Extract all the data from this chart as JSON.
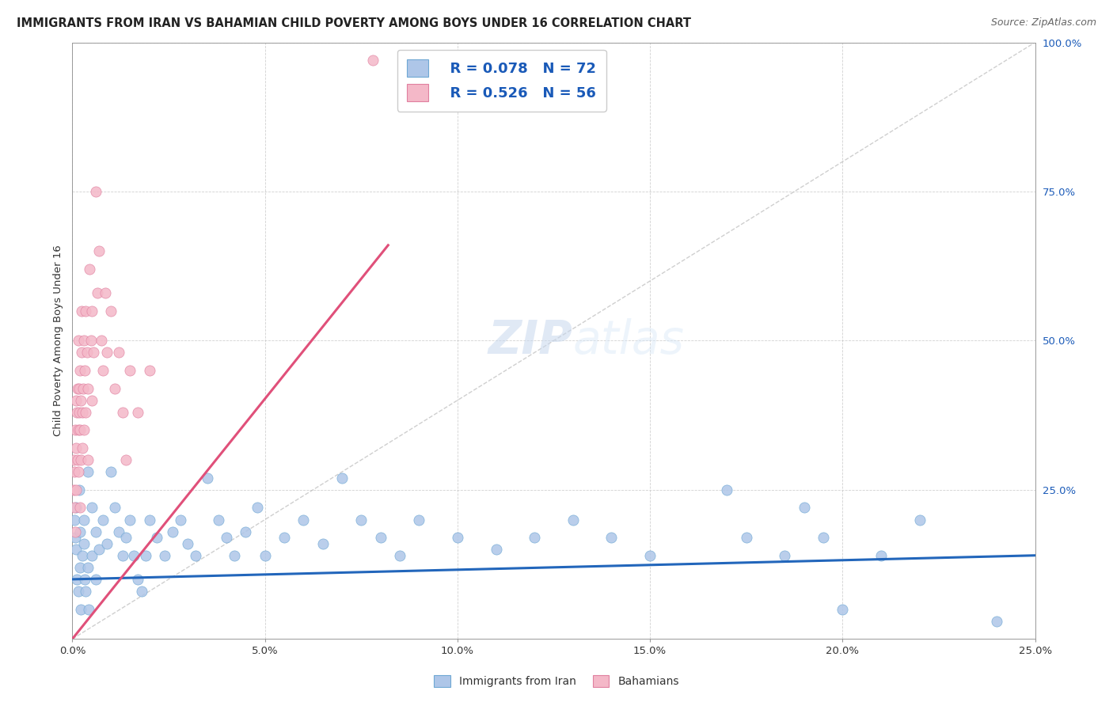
{
  "title": "IMMIGRANTS FROM IRAN VS BAHAMIAN CHILD POVERTY AMONG BOYS UNDER 16 CORRELATION CHART",
  "source": "Source: ZipAtlas.com",
  "ylabel": "Child Poverty Among Boys Under 16",
  "legend_entries": [
    {
      "label": "Immigrants from Iran",
      "R": "0.078",
      "N": "72",
      "color": "#aec6e8",
      "edge_color": "#6fa8d4",
      "line_color": "#2266bb"
    },
    {
      "label": "Bahamians",
      "R": "0.526",
      "N": "56",
      "color": "#f4b8c8",
      "edge_color": "#e080a0",
      "line_color": "#e0507a"
    }
  ],
  "watermark_zip": "ZIP",
  "watermark_atlas": "atlas",
  "blue_points": [
    [
      0.0005,
      0.2
    ],
    [
      0.0008,
      0.17
    ],
    [
      0.001,
      0.15
    ],
    [
      0.001,
      0.22
    ],
    [
      0.0012,
      0.1
    ],
    [
      0.0015,
      0.08
    ],
    [
      0.0018,
      0.25
    ],
    [
      0.002,
      0.12
    ],
    [
      0.002,
      0.18
    ],
    [
      0.0022,
      0.05
    ],
    [
      0.0025,
      0.14
    ],
    [
      0.003,
      0.16
    ],
    [
      0.003,
      0.2
    ],
    [
      0.0032,
      0.1
    ],
    [
      0.0035,
      0.08
    ],
    [
      0.004,
      0.12
    ],
    [
      0.004,
      0.28
    ],
    [
      0.0042,
      0.05
    ],
    [
      0.005,
      0.14
    ],
    [
      0.005,
      0.22
    ],
    [
      0.006,
      0.1
    ],
    [
      0.006,
      0.18
    ],
    [
      0.007,
      0.15
    ],
    [
      0.008,
      0.2
    ],
    [
      0.009,
      0.16
    ],
    [
      0.01,
      0.28
    ],
    [
      0.011,
      0.22
    ],
    [
      0.012,
      0.18
    ],
    [
      0.013,
      0.14
    ],
    [
      0.014,
      0.17
    ],
    [
      0.015,
      0.2
    ],
    [
      0.016,
      0.14
    ],
    [
      0.017,
      0.1
    ],
    [
      0.018,
      0.08
    ],
    [
      0.019,
      0.14
    ],
    [
      0.02,
      0.2
    ],
    [
      0.022,
      0.17
    ],
    [
      0.024,
      0.14
    ],
    [
      0.026,
      0.18
    ],
    [
      0.028,
      0.2
    ],
    [
      0.03,
      0.16
    ],
    [
      0.032,
      0.14
    ],
    [
      0.035,
      0.27
    ],
    [
      0.038,
      0.2
    ],
    [
      0.04,
      0.17
    ],
    [
      0.042,
      0.14
    ],
    [
      0.045,
      0.18
    ],
    [
      0.048,
      0.22
    ],
    [
      0.05,
      0.14
    ],
    [
      0.055,
      0.17
    ],
    [
      0.06,
      0.2
    ],
    [
      0.065,
      0.16
    ],
    [
      0.07,
      0.27
    ],
    [
      0.075,
      0.2
    ],
    [
      0.08,
      0.17
    ],
    [
      0.085,
      0.14
    ],
    [
      0.09,
      0.2
    ],
    [
      0.1,
      0.17
    ],
    [
      0.11,
      0.15
    ],
    [
      0.12,
      0.17
    ],
    [
      0.13,
      0.2
    ],
    [
      0.14,
      0.17
    ],
    [
      0.15,
      0.14
    ],
    [
      0.17,
      0.25
    ],
    [
      0.175,
      0.17
    ],
    [
      0.185,
      0.14
    ],
    [
      0.19,
      0.22
    ],
    [
      0.195,
      0.17
    ],
    [
      0.2,
      0.05
    ],
    [
      0.21,
      0.14
    ],
    [
      0.22,
      0.2
    ],
    [
      0.24,
      0.03
    ]
  ],
  "pink_points": [
    [
      0.0003,
      0.25
    ],
    [
      0.0004,
      0.3
    ],
    [
      0.0005,
      0.22
    ],
    [
      0.0006,
      0.28
    ],
    [
      0.0007,
      0.35
    ],
    [
      0.0008,
      0.18
    ],
    [
      0.0009,
      0.4
    ],
    [
      0.001,
      0.32
    ],
    [
      0.001,
      0.25
    ],
    [
      0.0012,
      0.38
    ],
    [
      0.0013,
      0.3
    ],
    [
      0.0014,
      0.42
    ],
    [
      0.0015,
      0.35
    ],
    [
      0.0015,
      0.28
    ],
    [
      0.0016,
      0.5
    ],
    [
      0.0017,
      0.38
    ],
    [
      0.0018,
      0.42
    ],
    [
      0.0019,
      0.22
    ],
    [
      0.002,
      0.45
    ],
    [
      0.002,
      0.35
    ],
    [
      0.0021,
      0.3
    ],
    [
      0.0022,
      0.4
    ],
    [
      0.0023,
      0.48
    ],
    [
      0.0024,
      0.55
    ],
    [
      0.0025,
      0.38
    ],
    [
      0.0026,
      0.32
    ],
    [
      0.0028,
      0.42
    ],
    [
      0.003,
      0.5
    ],
    [
      0.003,
      0.35
    ],
    [
      0.0032,
      0.45
    ],
    [
      0.0035,
      0.55
    ],
    [
      0.0035,
      0.38
    ],
    [
      0.0038,
      0.48
    ],
    [
      0.004,
      0.42
    ],
    [
      0.004,
      0.3
    ],
    [
      0.0045,
      0.62
    ],
    [
      0.0048,
      0.5
    ],
    [
      0.005,
      0.55
    ],
    [
      0.005,
      0.4
    ],
    [
      0.0055,
      0.48
    ],
    [
      0.006,
      0.75
    ],
    [
      0.0065,
      0.58
    ],
    [
      0.007,
      0.65
    ],
    [
      0.0075,
      0.5
    ],
    [
      0.008,
      0.45
    ],
    [
      0.0085,
      0.58
    ],
    [
      0.009,
      0.48
    ],
    [
      0.01,
      0.55
    ],
    [
      0.011,
      0.42
    ],
    [
      0.012,
      0.48
    ],
    [
      0.013,
      0.38
    ],
    [
      0.014,
      0.3
    ],
    [
      0.015,
      0.45
    ],
    [
      0.017,
      0.38
    ],
    [
      0.02,
      0.45
    ],
    [
      0.078,
      0.97
    ]
  ],
  "pink_trend_x": [
    0.0,
    0.082
  ],
  "pink_trend_y": [
    0.0,
    0.66
  ],
  "blue_trend_x": [
    0.0,
    0.25
  ],
  "blue_trend_y": [
    0.1,
    0.14
  ],
  "xlim": [
    0.0,
    0.25
  ],
  "ylim": [
    0.0,
    1.0
  ],
  "xticks": [
    0.0,
    0.05,
    0.1,
    0.15,
    0.2,
    0.25
  ],
  "xticklabels": [
    "0.0%",
    "5.0%",
    "10.0%",
    "15.0%",
    "20.0%",
    "25.0%"
  ],
  "yticks": [
    0.0,
    0.25,
    0.5,
    0.75,
    1.0
  ],
  "yticklabels": [
    "",
    "25.0%",
    "50.0%",
    "75.0%",
    "100.0%"
  ],
  "bg_color": "#ffffff",
  "grid_color": "#cccccc"
}
